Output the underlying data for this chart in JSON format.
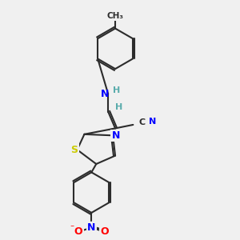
{
  "background_color": "#f0f0f0",
  "bond_color": "#2c2c2c",
  "atom_colors": {
    "N": "#0000ff",
    "S": "#cccc00",
    "O": "#ff0000",
    "C": "#2c2c2c",
    "H": "#5aacac"
  },
  "figsize": [
    3.0,
    3.0
  ],
  "dpi": 100
}
